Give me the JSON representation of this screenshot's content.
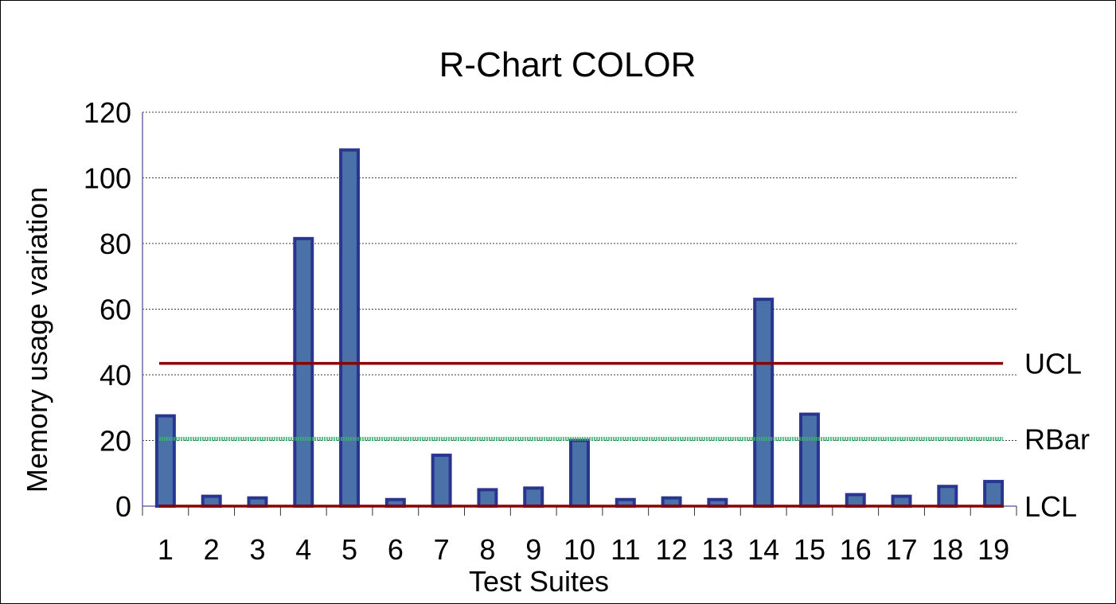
{
  "chart_data": {
    "type": "bar",
    "title": "R-Chart COLOR",
    "xlabel": "Test Suites",
    "ylabel": "Memory usage variation",
    "ylim": [
      0,
      120
    ],
    "yticks": [
      "0",
      "20",
      "40",
      "60",
      "80",
      "100",
      "120"
    ],
    "grid": true,
    "categories": [
      "1",
      "2",
      "3",
      "4",
      "5",
      "6",
      "7",
      "8",
      "9",
      "10",
      "11",
      "12",
      "13",
      "14",
      "15",
      "16",
      "17",
      "18",
      "19"
    ],
    "values": [
      27.5,
      3,
      2.5,
      81.5,
      108.5,
      2,
      15.5,
      5,
      5.5,
      20,
      2,
      2.5,
      2,
      63,
      28,
      3.5,
      3,
      6,
      7.5
    ],
    "control_lines": [
      {
        "label": "UCL",
        "value": 43.5,
        "color": "#8b0000",
        "style": "solid"
      },
      {
        "label": "RBar",
        "value": 20.5,
        "color": "#3cb371",
        "style": "dotted"
      },
      {
        "label": "LCL",
        "value": 0,
        "color": "#8b0000",
        "style": "solid"
      }
    ],
    "bar_fill": "#4a72a8",
    "bar_stroke": "#2a3590"
  }
}
